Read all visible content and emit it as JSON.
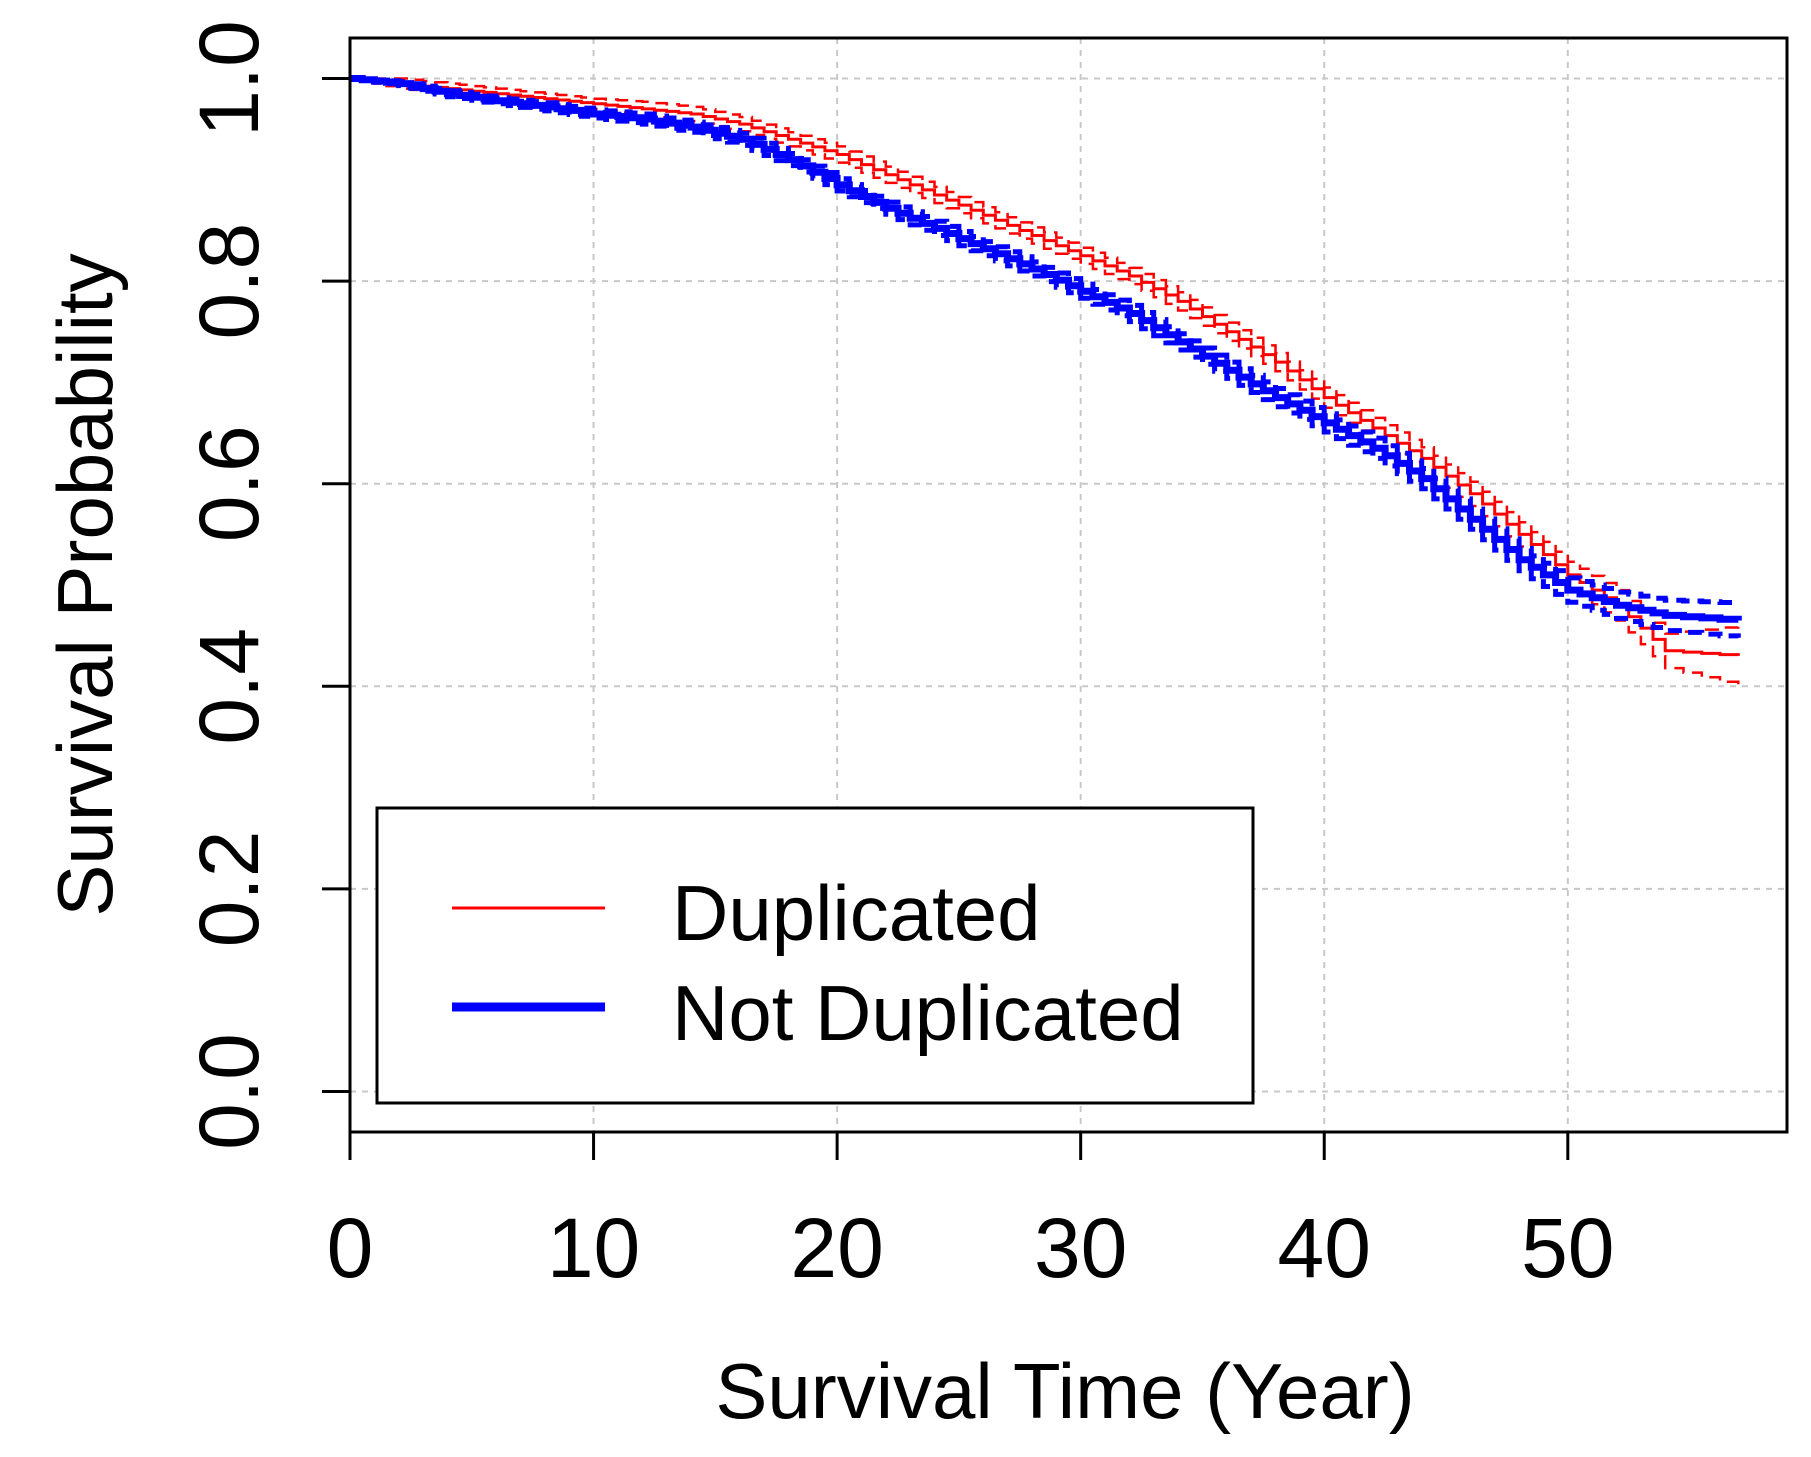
{
  "chart_data": {
    "type": "line",
    "subtype": "step (Kaplan-Meier) with confidence bands",
    "title": "",
    "xlabel": "Survival Time (Year)",
    "ylabel": "Survival Probability",
    "xlim": [
      0,
      59
    ],
    "ylim": [
      -0.04,
      1.04
    ],
    "xticks": [
      "0",
      "10",
      "20",
      "30",
      "40",
      "50"
    ],
    "yticks": [
      "0.0",
      "0.2",
      "0.4",
      "0.6",
      "0.8",
      "1.0"
    ],
    "grid": true,
    "legend": {
      "position": "bottom-left",
      "entries": [
        "Duplicated",
        "Not Duplicated"
      ]
    },
    "series": [
      {
        "name": "Duplicated",
        "color": "#ff0000",
        "line": "thin",
        "x": [
          0,
          2,
          4,
          6,
          8,
          10,
          12,
          14,
          16,
          18,
          20,
          22,
          24,
          26,
          28,
          30,
          32,
          34,
          36,
          38,
          40,
          42,
          44,
          46,
          48,
          50,
          52,
          54,
          57
        ],
        "y": [
          1.0,
          0.995,
          0.99,
          0.985,
          0.98,
          0.975,
          0.97,
          0.965,
          0.955,
          0.94,
          0.925,
          0.905,
          0.885,
          0.865,
          0.845,
          0.825,
          0.805,
          0.78,
          0.75,
          0.72,
          0.685,
          0.655,
          0.625,
          0.59,
          0.55,
          0.51,
          0.48,
          0.435,
          0.43
        ],
        "lower": [
          1.0,
          0.99,
          0.985,
          0.98,
          0.975,
          0.97,
          0.963,
          0.958,
          0.948,
          0.933,
          0.917,
          0.897,
          0.877,
          0.857,
          0.837,
          0.817,
          0.797,
          0.771,
          0.741,
          0.711,
          0.675,
          0.645,
          0.614,
          0.578,
          0.538,
          0.497,
          0.465,
          0.418,
          0.4
        ],
        "upper": [
          1.0,
          1.0,
          0.995,
          0.99,
          0.985,
          0.98,
          0.977,
          0.972,
          0.962,
          0.947,
          0.933,
          0.913,
          0.893,
          0.873,
          0.853,
          0.833,
          0.813,
          0.789,
          0.759,
          0.729,
          0.695,
          0.665,
          0.636,
          0.602,
          0.562,
          0.523,
          0.495,
          0.452,
          0.46
        ]
      },
      {
        "name": "Not Duplicated",
        "color": "#0000ff",
        "line": "thick",
        "x": [
          0,
          2,
          4,
          6,
          8,
          10,
          12,
          14,
          16,
          18,
          20,
          22,
          24,
          26,
          28,
          30,
          32,
          34,
          36,
          38,
          40,
          42,
          44,
          46,
          48,
          50,
          52,
          54,
          57
        ],
        "y": [
          1.0,
          0.995,
          0.985,
          0.978,
          0.972,
          0.965,
          0.96,
          0.952,
          0.94,
          0.92,
          0.895,
          0.872,
          0.852,
          0.832,
          0.812,
          0.79,
          0.768,
          0.74,
          0.712,
          0.685,
          0.66,
          0.635,
          0.605,
          0.565,
          0.525,
          0.495,
          0.48,
          0.47,
          0.465
        ],
        "lower": [
          1.0,
          0.993,
          0.982,
          0.975,
          0.968,
          0.961,
          0.955,
          0.947,
          0.934,
          0.914,
          0.889,
          0.866,
          0.845,
          0.825,
          0.805,
          0.783,
          0.76,
          0.732,
          0.704,
          0.676,
          0.651,
          0.625,
          0.595,
          0.555,
          0.514,
          0.483,
          0.467,
          0.455,
          0.448
        ],
        "upper": [
          1.0,
          0.997,
          0.988,
          0.981,
          0.976,
          0.969,
          0.965,
          0.957,
          0.946,
          0.926,
          0.901,
          0.878,
          0.859,
          0.839,
          0.819,
          0.797,
          0.776,
          0.748,
          0.72,
          0.694,
          0.669,
          0.645,
          0.615,
          0.575,
          0.536,
          0.507,
          0.493,
          0.485,
          0.482
        ]
      }
    ]
  }
}
